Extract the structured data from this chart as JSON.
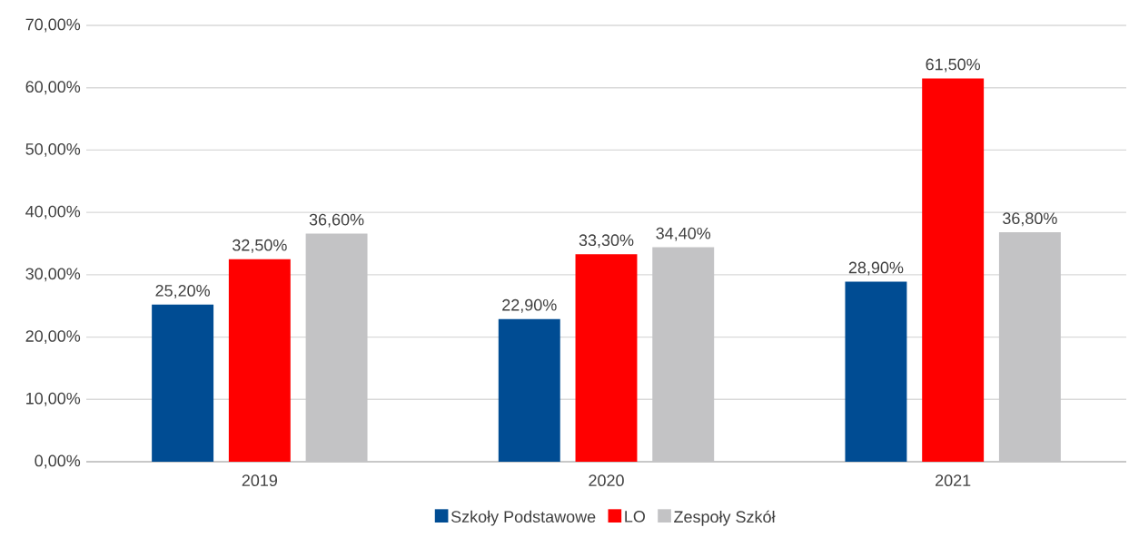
{
  "chart_data": {
    "type": "bar",
    "categories": [
      "2019",
      "2020",
      "2021"
    ],
    "series": [
      {
        "name": "Szkoły Podstawowe",
        "color": "#004c93",
        "values": [
          25.2,
          22.9,
          28.9
        ],
        "value_labels": [
          "25,20%",
          "22,90%",
          "28,90%"
        ]
      },
      {
        "name": "LO",
        "color": "#ff0000",
        "values": [
          32.5,
          33.3,
          61.5
        ],
        "value_labels": [
          "32,50%",
          "33,30%",
          "61,50%"
        ]
      },
      {
        "name": "Zespoły Szkół",
        "color": "#c3c3c5",
        "values": [
          36.6,
          34.4,
          36.8
        ],
        "value_labels": [
          "36,60%",
          "34,40%",
          "36,80%"
        ]
      }
    ],
    "ylim": [
      0,
      70
    ],
    "yticks": [
      {
        "value": 0,
        "label": "0,00%"
      },
      {
        "value": 10,
        "label": "10,00%"
      },
      {
        "value": 20,
        "label": "20,00%"
      },
      {
        "value": 30,
        "label": "30,00%"
      },
      {
        "value": 40,
        "label": "40,00%"
      },
      {
        "value": 50,
        "label": "50,00%"
      },
      {
        "value": 60,
        "label": "60,00%"
      },
      {
        "value": 70,
        "label": "70,00%"
      }
    ],
    "grid": "y",
    "legend": "bottom"
  }
}
